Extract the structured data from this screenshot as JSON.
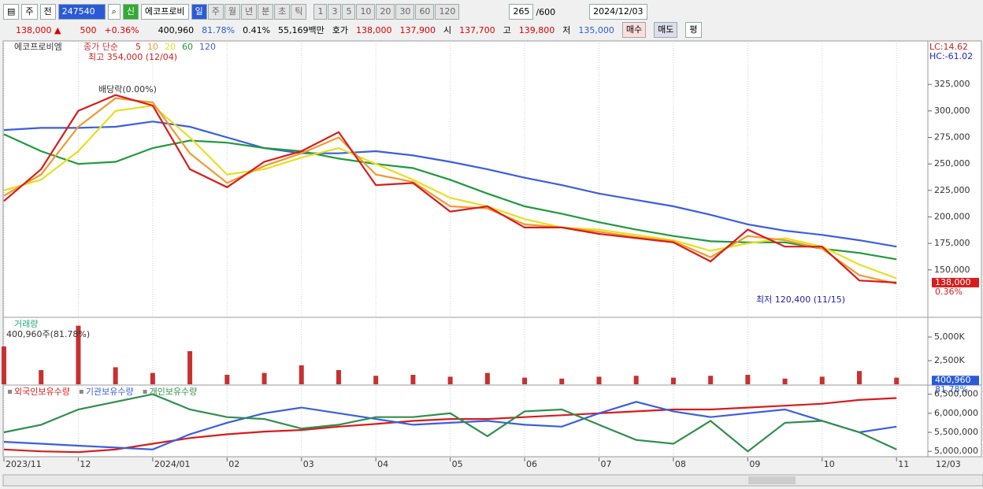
{
  "toolbar": {
    "type_btn": "주",
    "all": "전",
    "code": "247540",
    "new": "신",
    "name": "에코프로비",
    "periods": [
      "일",
      "주",
      "월",
      "년",
      "분",
      "초",
      "틱"
    ],
    "intervals": [
      "1",
      "3",
      "5",
      "10",
      "20",
      "30",
      "60",
      "120"
    ],
    "count": "265",
    "max": "/600",
    "date": "2024/12/03"
  },
  "quote": {
    "price": "138,000 ▲",
    "change": "500",
    "rate": "+0.36%",
    "volume": "400,960",
    "vol_ratio": "81.78%",
    "turnover": "0.41%",
    "amount": "55,169백만",
    "ask_label": "호가",
    "ask": "138,000",
    "bid": "137,900",
    "open_label": "시",
    "open": "137,700",
    "high_label": "고",
    "high": "139,800",
    "low_label": "저",
    "low": "135,000",
    "buy": "매수",
    "sell": "매도",
    "avg": "평"
  },
  "chart_data": [
    {
      "type": "line",
      "title": "에코프로비엠",
      "legend_title": "종가 단순",
      "high_note": "최고 354,000 (12/04)",
      "low_note": "최저 120,400 (11/15)",
      "event_note": "배당락(0.00%)",
      "lc": "LC:14.62",
      "hc": "HC:-61.02",
      "x": [
        0,
        0.5,
        1,
        1.5,
        2,
        2.5,
        3,
        3.5,
        4,
        4.5,
        5,
        5.5,
        6,
        6.5,
        7,
        7.5,
        8,
        8.5,
        9,
        9.5,
        10,
        10.5,
        11,
        11.5,
        12
      ],
      "xlim": [
        0,
        12.4
      ],
      "ylim": [
        106000,
        366000
      ],
      "yticks": [
        {
          "value": 150000,
          "label": "150,000"
        },
        {
          "value": 175000,
          "label": "175,000"
        },
        {
          "value": 200000,
          "label": "200,000"
        },
        {
          "value": 225000,
          "label": "225,000"
        },
        {
          "value": 250000,
          "label": "250,000"
        },
        {
          "value": 275000,
          "label": "275,000"
        },
        {
          "value": 300000,
          "label": "300,000"
        },
        {
          "value": 325000,
          "label": "325,000"
        }
      ],
      "series": [
        {
          "name": "120",
          "color": "#3a5ee0",
          "values": [
            282000,
            284000,
            284000,
            285000,
            290000,
            285000,
            275000,
            265000,
            260000,
            260000,
            262000,
            258000,
            252000,
            245000,
            237000,
            230000,
            222000,
            216000,
            210000,
            202000,
            193000,
            187000,
            183000,
            178000,
            172000
          ]
        },
        {
          "name": "60",
          "color": "#1f9a3c",
          "values": [
            278000,
            262000,
            250000,
            252000,
            265000,
            272000,
            270000,
            265000,
            262000,
            255000,
            250000,
            246000,
            235000,
            222000,
            210000,
            203000,
            195000,
            188000,
            182000,
            177000,
            176000,
            176000,
            170000,
            166000,
            160000
          ]
        },
        {
          "name": "20",
          "color": "#e6e020",
          "values": [
            225000,
            235000,
            262000,
            300000,
            305000,
            275000,
            240000,
            245000,
            256000,
            265000,
            250000,
            235000,
            218000,
            210000,
            198000,
            190000,
            188000,
            183000,
            178000,
            168000,
            175000,
            180000,
            172000,
            155000,
            142000
          ]
        },
        {
          "name": "10",
          "color": "#f09a30",
          "values": [
            220000,
            240000,
            285000,
            312000,
            308000,
            260000,
            232000,
            248000,
            260000,
            275000,
            240000,
            233000,
            210000,
            208000,
            193000,
            190000,
            186000,
            181000,
            177000,
            162000,
            182000,
            178000,
            170000,
            145000,
            137000
          ]
        },
        {
          "name": "5",
          "color": "#d81c1c",
          "values": [
            215000,
            245000,
            300000,
            315000,
            305000,
            245000,
            228000,
            252000,
            262000,
            280000,
            230000,
            232000,
            205000,
            210000,
            190000,
            190000,
            184000,
            180000,
            176000,
            158000,
            188000,
            172000,
            172000,
            140000,
            138000
          ]
        }
      ],
      "last": {
        "value": 138000,
        "label": "138,000"
      },
      "last_rate": "0.36%"
    },
    {
      "type": "bar",
      "title": "거래량",
      "subtitle": "400,960주(81.78%)",
      "color": "#c83030",
      "x": [
        0,
        0.5,
        1,
        1.5,
        2,
        2.5,
        3,
        3.5,
        4,
        4.5,
        5,
        5.5,
        6,
        6.5,
        7,
        7.5,
        8,
        8.5,
        9,
        9.5,
        10,
        10.5,
        11,
        11.5,
        12
      ],
      "values": [
        4000,
        1500,
        6200,
        1800,
        1200,
        3500,
        1000,
        1200,
        2000,
        1500,
        900,
        1000,
        800,
        1200,
        700,
        600,
        800,
        900,
        700,
        900,
        1000,
        600,
        800,
        1400,
        700
      ],
      "xlim": [
        0,
        12.4
      ],
      "ylim": [
        0,
        7000
      ],
      "yticks": [
        {
          "value": 2500,
          "label": "2,500K"
        },
        {
          "value": 5000,
          "label": "5,000K"
        }
      ],
      "last": {
        "value": 400.96,
        "label": "400,960"
      },
      "last_rate": "81.78%"
    },
    {
      "type": "line",
      "x": [
        0,
        0.5,
        1,
        1.5,
        2,
        2.5,
        3,
        3.5,
        4,
        4.5,
        5,
        5.5,
        6,
        6.5,
        7,
        7.5,
        8,
        8.5,
        9,
        9.5,
        10,
        10.5,
        11,
        11.5,
        12
      ],
      "xlim": [
        0,
        12.4
      ],
      "ylim": [
        4860000,
        6720000
      ],
      "yticks": [
        {
          "value": 5000000,
          "label": "5,000,000"
        },
        {
          "value": 5500000,
          "label": "5,500,000"
        },
        {
          "value": 6000000,
          "label": "6,000,000"
        },
        {
          "value": 6500000,
          "label": "6,500,000"
        }
      ],
      "xticks": [
        {
          "value": 0,
          "label": "2023/11"
        },
        {
          "value": 1,
          "label": "12"
        },
        {
          "value": 2,
          "label": "2024/01"
        },
        {
          "value": 3,
          "label": "02"
        },
        {
          "value": 4,
          "label": "03"
        },
        {
          "value": 5,
          "label": "04"
        },
        {
          "value": 6,
          "label": "05"
        },
        {
          "value": 7,
          "label": "06"
        },
        {
          "value": 8,
          "label": "07"
        },
        {
          "value": 9,
          "label": "08"
        },
        {
          "value": 10,
          "label": "09"
        },
        {
          "value": 11,
          "label": "10"
        },
        {
          "value": 12,
          "label": "11"
        }
      ],
      "x_end_label": "12/03",
      "series": [
        {
          "name": "외국인보유수량",
          "color": "#d81c1c",
          "values": [
            5050000,
            5000000,
            4980000,
            5050000,
            5200000,
            5350000,
            5450000,
            5520000,
            5560000,
            5650000,
            5720000,
            5800000,
            5850000,
            5850000,
            5900000,
            5950000,
            6000000,
            6050000,
            6100000,
            6100000,
            6150000,
            6200000,
            6250000,
            6350000,
            6400000
          ]
        },
        {
          "name": "기관보유수량",
          "color": "#3a5ee0",
          "values": [
            5250000,
            5200000,
            5150000,
            5100000,
            5050000,
            5450000,
            5750000,
            6000000,
            6150000,
            6000000,
            5850000,
            5700000,
            5750000,
            5800000,
            5700000,
            5650000,
            6000000,
            6300000,
            6050000,
            5900000,
            6000000,
            6100000,
            5800000,
            5500000,
            5650000
          ]
        },
        {
          "name": "개인보유수량",
          "color": "#2f8f4a",
          "values": [
            5500000,
            5700000,
            6100000,
            6300000,
            6500000,
            6100000,
            5900000,
            5850000,
            5600000,
            5700000,
            5900000,
            5900000,
            6000000,
            5400000,
            6050000,
            6100000,
            5700000,
            5300000,
            5200000,
            5800000,
            5000000,
            5750000,
            5800000,
            5500000,
            5050000
          ]
        }
      ]
    }
  ]
}
